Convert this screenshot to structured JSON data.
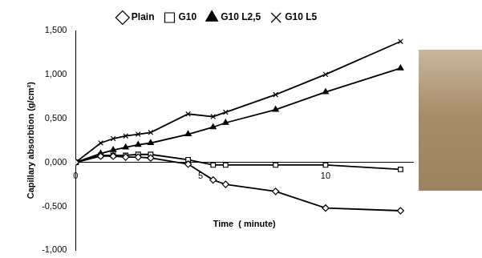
{
  "chart_data": {
    "type": "line",
    "x_label": "Time  ( minute)",
    "y_label": "Capillary absorbtion (g/cm²)",
    "x": [
      0,
      1,
      1.5,
      2,
      2.5,
      3,
      4.5,
      5.5,
      6,
      8,
      10,
      13
    ],
    "series": [
      {
        "name": "Plain",
        "color": "#000000",
        "marker": "diamond",
        "values": [
          0,
          0.07,
          0.07,
          0.06,
          0.06,
          0.05,
          -0.02,
          -0.2,
          -0.25,
          -0.33,
          -0.52,
          -0.55
        ]
      },
      {
        "name": "G10",
        "color": "#000000",
        "marker": "square",
        "values": [
          0,
          0.08,
          0.08,
          0.08,
          0.09,
          0.09,
          0.03,
          -0.03,
          -0.03,
          -0.03,
          -0.03,
          -0.08
        ]
      },
      {
        "name": "G10 L2,5",
        "color": "#000000",
        "marker": "triangle",
        "values": [
          0,
          0.1,
          0.14,
          0.17,
          0.2,
          0.22,
          0.32,
          0.4,
          0.45,
          0.6,
          0.8,
          1.07
        ]
      },
      {
        "name": "G10 L5",
        "color": "#000000",
        "marker": "x",
        "values": [
          0,
          0.22,
          0.27,
          0.3,
          0.32,
          0.34,
          0.55,
          0.52,
          0.57,
          0.77,
          1.0,
          1.375
        ]
      }
    ],
    "xlim": [
      0,
      13.5
    ],
    "xticks": [
      0,
      5,
      10
    ],
    "ylim": [
      -1,
      1.5
    ],
    "yticks": [
      {
        "value": -1,
        "label": "-1,000"
      },
      {
        "value": -0.5,
        "label": "-0,500"
      },
      {
        "value": 0,
        "label": "0,000"
      },
      {
        "value": 0.5,
        "label": "0,500"
      },
      {
        "value": 1,
        "label": "1,000"
      },
      {
        "value": 1.5,
        "label": "1,500"
      }
    ],
    "grid": false,
    "legend": "top"
  }
}
